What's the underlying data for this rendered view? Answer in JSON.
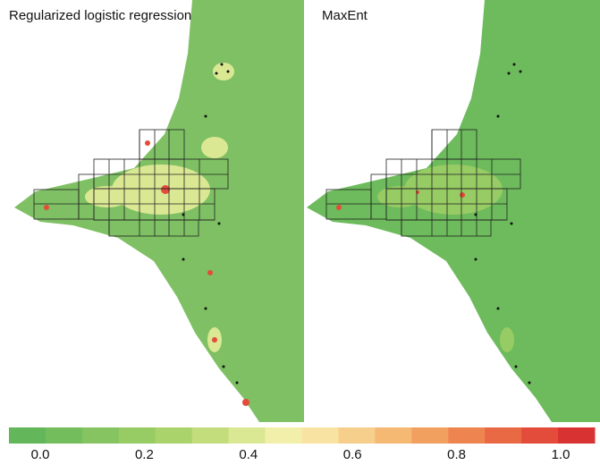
{
  "panels": [
    {
      "title": "Regularized logistic regression"
    },
    {
      "title": "MaxEnt"
    }
  ],
  "legend": {
    "colors": [
      "#63b75a",
      "#73bd5d",
      "#85c460",
      "#97cb64",
      "#abd36c",
      "#c3dd7c",
      "#dbe893",
      "#f1efaa",
      "#f9e3a3",
      "#f7cf8c",
      "#f5b974",
      "#f2a060",
      "#ee8550",
      "#e96944",
      "#e34c3a",
      "#d93232"
    ],
    "ticks": [
      {
        "value": 0,
        "label": "0.0"
      },
      {
        "value": 0.2,
        "label": "0.2"
      },
      {
        "value": 0.4,
        "label": "0.4"
      },
      {
        "value": 0.6,
        "label": "0.6"
      },
      {
        "value": 0.8,
        "label": "0.8"
      },
      {
        "value": 1,
        "label": "1.0"
      }
    ]
  }
}
